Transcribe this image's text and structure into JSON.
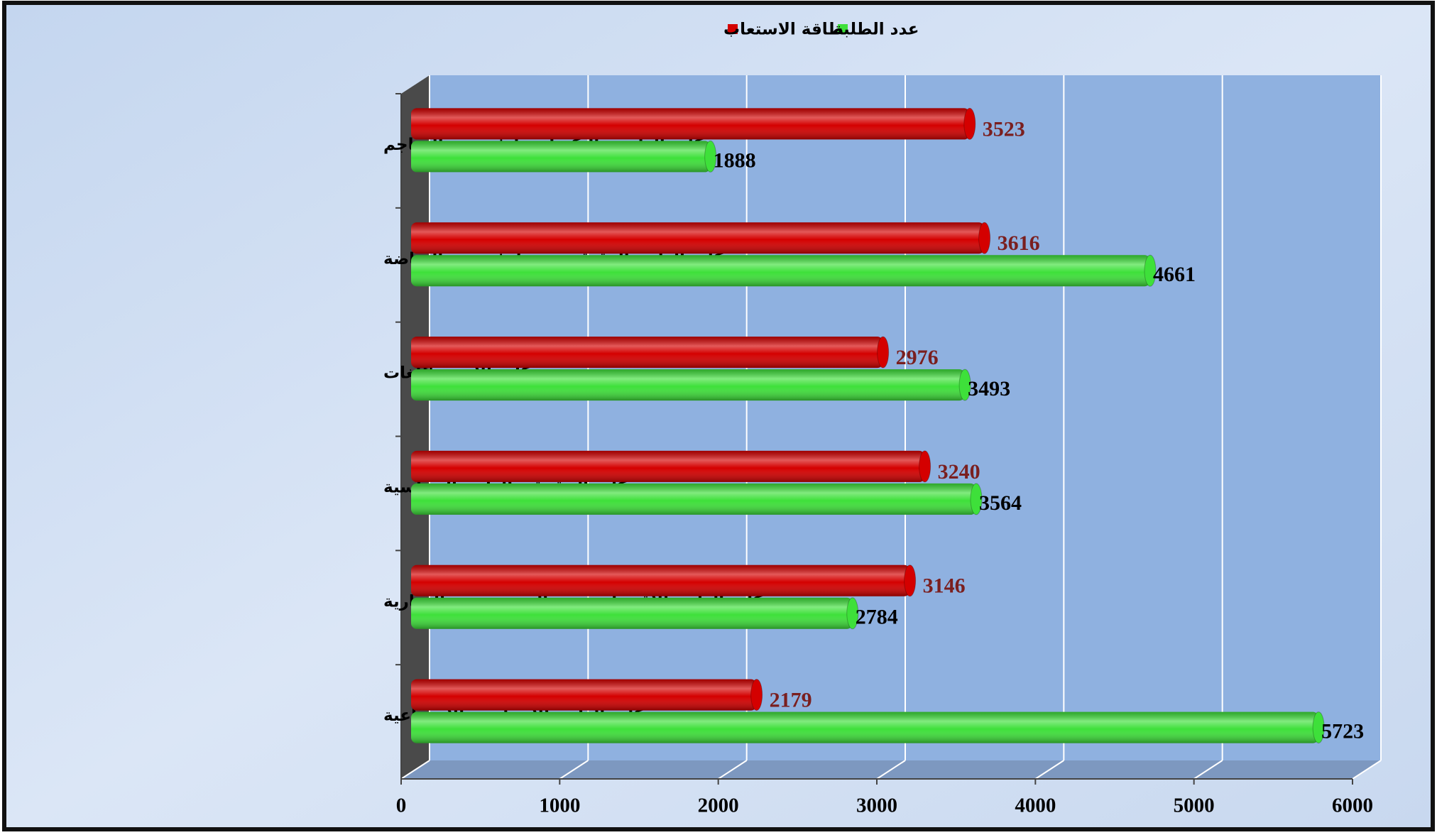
{
  "chart_data": {
    "type": "bar",
    "orientation": "horizontal",
    "categories": [
      "كلية العلوم والتكنولوجيا + معهد المناجم",
      "كلية العلوم الدقيقة و ع،ط + معهد الرياضة",
      "كلية الأدب واللغات",
      "كلية الحقوق والعلوم السياسية",
      "كلية العلوم الاقتصادية و ع،التسيير و ع، التجارية",
      "كلية العلوم الانسانية والاجتماعية"
    ],
    "series": [
      {
        "name": "طاقة الاستعاب",
        "color": "#d40000",
        "label_color": "#7a1f1f",
        "values": [
          3523,
          3616,
          2976,
          3240,
          3146,
          2179
        ]
      },
      {
        "name": "عدد الطلبة",
        "color": "#3ee03a",
        "label_color": "#000000",
        "values": [
          1888,
          4661,
          3493,
          3564,
          2784,
          5723
        ]
      }
    ],
    "xlim": [
      0,
      6000
    ],
    "xticks": [
      0,
      1000,
      2000,
      3000,
      4000,
      5000,
      6000
    ],
    "grid": true,
    "legend": "top"
  }
}
